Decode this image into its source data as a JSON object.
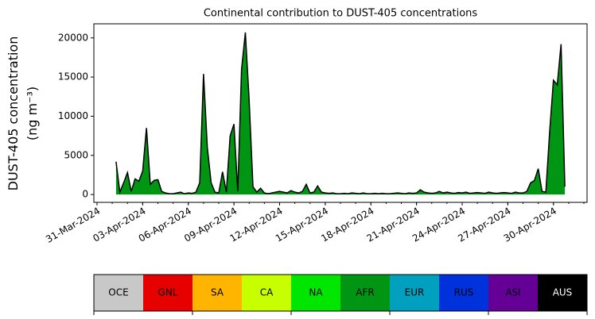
{
  "chart_data": {
    "type": "area",
    "title": "Continental contribution to DUST-405 concentrations",
    "y_label": [
      "DUST-405 concentration",
      "(ng m⁻³)"
    ],
    "x": [
      "2024-04-01 06:00",
      "2024-04-01 12:00",
      "2024-04-01 18:00",
      "2024-04-02 00:00",
      "2024-04-02 06:00",
      "2024-04-02 12:00",
      "2024-04-02 18:00",
      "2024-04-03 00:00",
      "2024-04-03 06:00",
      "2024-04-03 12:00",
      "2024-04-03 18:00",
      "2024-04-04 00:00",
      "2024-04-04 06:00",
      "2024-04-04 12:00",
      "2024-04-04 18:00",
      "2024-04-05 00:00",
      "2024-04-05 06:00",
      "2024-04-05 12:00",
      "2024-04-05 18:00",
      "2024-04-06 00:00",
      "2024-04-06 06:00",
      "2024-04-06 12:00",
      "2024-04-06 18:00",
      "2024-04-07 00:00",
      "2024-04-07 06:00",
      "2024-04-07 12:00",
      "2024-04-07 18:00",
      "2024-04-08 00:00",
      "2024-04-08 06:00",
      "2024-04-08 12:00",
      "2024-04-08 18:00",
      "2024-04-09 00:00",
      "2024-04-09 06:00",
      "2024-04-09 12:00",
      "2024-04-09 18:00",
      "2024-04-10 00:00",
      "2024-04-10 06:00",
      "2024-04-10 12:00",
      "2024-04-10 18:00",
      "2024-04-11 00:00",
      "2024-04-11 06:00",
      "2024-04-11 12:00",
      "2024-04-11 18:00",
      "2024-04-12 00:00",
      "2024-04-12 06:00",
      "2024-04-12 12:00",
      "2024-04-12 18:00",
      "2024-04-13 00:00",
      "2024-04-13 06:00",
      "2024-04-13 12:00",
      "2024-04-13 18:00",
      "2024-04-14 00:00",
      "2024-04-14 06:00",
      "2024-04-14 12:00",
      "2024-04-14 18:00",
      "2024-04-15 00:00",
      "2024-04-15 06:00",
      "2024-04-15 12:00",
      "2024-04-15 18:00",
      "2024-04-16 00:00",
      "2024-04-16 06:00",
      "2024-04-16 12:00",
      "2024-04-16 18:00",
      "2024-04-17 00:00",
      "2024-04-17 06:00",
      "2024-04-17 12:00",
      "2024-04-17 18:00",
      "2024-04-18 00:00",
      "2024-04-18 06:00",
      "2024-04-18 12:00",
      "2024-04-18 18:00",
      "2024-04-19 00:00",
      "2024-04-19 06:00",
      "2024-04-19 12:00",
      "2024-04-19 18:00",
      "2024-04-20 00:00",
      "2024-04-20 06:00",
      "2024-04-20 12:00",
      "2024-04-20 18:00",
      "2024-04-21 00:00",
      "2024-04-21 06:00",
      "2024-04-21 12:00",
      "2024-04-21 18:00",
      "2024-04-22 00:00",
      "2024-04-22 06:00",
      "2024-04-22 12:00",
      "2024-04-22 18:00",
      "2024-04-23 00:00",
      "2024-04-23 06:00",
      "2024-04-23 12:00",
      "2024-04-23 18:00",
      "2024-04-24 00:00",
      "2024-04-24 06:00",
      "2024-04-24 12:00",
      "2024-04-24 18:00",
      "2024-04-25 00:00",
      "2024-04-25 06:00",
      "2024-04-25 12:00",
      "2024-04-25 18:00",
      "2024-04-26 00:00",
      "2024-04-26 06:00",
      "2024-04-26 12:00",
      "2024-04-26 18:00",
      "2024-04-27 00:00",
      "2024-04-27 06:00",
      "2024-04-27 12:00",
      "2024-04-27 18:00",
      "2024-04-28 00:00",
      "2024-04-28 06:00",
      "2024-04-28 12:00",
      "2024-04-28 18:00",
      "2024-04-29 00:00",
      "2024-04-29 06:00",
      "2024-04-29 12:00",
      "2024-04-29 18:00",
      "2024-04-30 00:00",
      "2024-04-30 06:00",
      "2024-04-30 12:00",
      "2024-04-30 18:00"
    ],
    "series": [
      {
        "name": "AFR",
        "color": "#009614",
        "values": [
          4200,
          300,
          1500,
          2800,
          400,
          2000,
          1700,
          3000,
          8500,
          1300,
          1800,
          1900,
          400,
          200,
          100,
          100,
          200,
          300,
          100,
          200,
          150,
          300,
          1500,
          15400,
          6000,
          1500,
          300,
          200,
          2900,
          300,
          7500,
          9000,
          400,
          16000,
          20700,
          12000,
          1000,
          300,
          800,
          200,
          100,
          200,
          300,
          400,
          300,
          200,
          500,
          300,
          200,
          400,
          1300,
          200,
          300,
          1100,
          300,
          200,
          150,
          200,
          100,
          100,
          150,
          100,
          200,
          150,
          100,
          200,
          100,
          100,
          150,
          100,
          150,
          100,
          100,
          150,
          200,
          150,
          100,
          200,
          150,
          200,
          600,
          300,
          200,
          150,
          200,
          400,
          200,
          300,
          200,
          150,
          250,
          200,
          300,
          150,
          200,
          250,
          200,
          150,
          300,
          200,
          150,
          200,
          250,
          200,
          150,
          300,
          200,
          200,
          400,
          1500,
          1800,
          3300,
          400,
          300,
          8000,
          14600,
          14000,
          19200,
          1000
        ]
      }
    ],
    "outline_color": "#000000",
    "xlim": [
      "2024-03-30 19:00",
      "2024-05-02 05:00"
    ],
    "xticks": [
      {
        "value": "2024-03-31 00:00",
        "label": "31-Mar-2024"
      },
      {
        "value": "2024-04-03 00:00",
        "label": "03-Apr-2024"
      },
      {
        "value": "2024-04-06 00:00",
        "label": "06-Apr-2024"
      },
      {
        "value": "2024-04-09 00:00",
        "label": "09-Apr-2024"
      },
      {
        "value": "2024-04-12 00:00",
        "label": "12-Apr-2024"
      },
      {
        "value": "2024-04-15 00:00",
        "label": "15-Apr-2024"
      },
      {
        "value": "2024-04-18 00:00",
        "label": "18-Apr-2024"
      },
      {
        "value": "2024-04-21 00:00",
        "label": "21-Apr-2024"
      },
      {
        "value": "2024-04-24 00:00",
        "label": "24-Apr-2024"
      },
      {
        "value": "2024-04-27 00:00",
        "label": "27-Apr-2024"
      },
      {
        "value": "2024-04-30 00:00",
        "label": "30-Apr-2024"
      }
    ],
    "ylim": [
      -1000,
      21800
    ],
    "yticks": [
      0,
      5000,
      10000,
      15000,
      20000
    ],
    "colorbar": [
      {
        "name": "OCE",
        "color": "#c8c8c8",
        "text_color": "#000000"
      },
      {
        "name": "GNL",
        "color": "#e60000",
        "text_color": "#000000"
      },
      {
        "name": "SA",
        "color": "#ffb400",
        "text_color": "#000000"
      },
      {
        "name": "CA",
        "color": "#c8ff00",
        "text_color": "#000000"
      },
      {
        "name": "NA",
        "color": "#00e600",
        "text_color": "#000000"
      },
      {
        "name": "AFR",
        "color": "#009614",
        "text_color": "#000000"
      },
      {
        "name": "EUR",
        "color": "#00a0be",
        "text_color": "#000000"
      },
      {
        "name": "RUS",
        "color": "#0032dc",
        "text_color": "#000000"
      },
      {
        "name": "ASI",
        "color": "#640096",
        "text_color": "#000000"
      },
      {
        "name": "AUS",
        "color": "#000000",
        "text_color": "#ffffff"
      }
    ]
  }
}
